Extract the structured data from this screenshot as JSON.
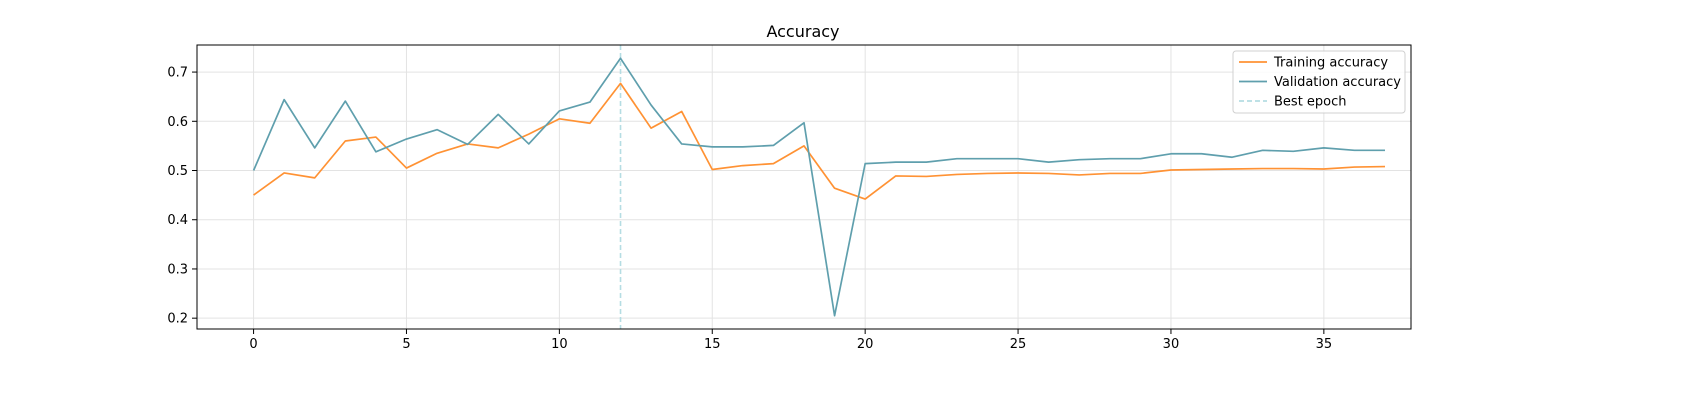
{
  "chart_data": {
    "type": "line",
    "title": "Accuracy",
    "xlabel": "",
    "ylabel": "",
    "xlim": [
      -1.85,
      37.85
    ],
    "ylim": [
      0.178,
      0.755
    ],
    "xticks": [
      0,
      5,
      10,
      15,
      20,
      25,
      30,
      35
    ],
    "yticks": [
      0.2,
      0.3,
      0.4,
      0.5,
      0.6,
      0.7
    ],
    "grid": true,
    "legend_position": "top-right",
    "x": [
      0,
      1,
      2,
      3,
      4,
      5,
      6,
      7,
      8,
      9,
      10,
      11,
      12,
      13,
      14,
      15,
      16,
      17,
      18,
      19,
      20,
      21,
      22,
      23,
      24,
      25,
      26,
      27,
      28,
      29,
      30,
      31,
      32,
      33,
      34,
      35,
      36,
      37
    ],
    "series": [
      {
        "name": "Training accuracy",
        "color": "#ff9234",
        "style": "solid",
        "values": [
          0.45,
          0.495,
          0.485,
          0.56,
          0.568,
          0.505,
          0.535,
          0.554,
          0.546,
          0.574,
          0.605,
          0.596,
          0.677,
          0.586,
          0.62,
          0.502,
          0.51,
          0.514,
          0.55,
          0.464,
          0.442,
          0.489,
          0.488,
          0.492,
          0.494,
          0.495,
          0.494,
          0.491,
          0.494,
          0.494,
          0.501,
          0.502,
          0.503,
          0.504,
          0.504,
          0.503,
          0.507,
          0.508
        ]
      },
      {
        "name": "Validation accuracy",
        "color": "#5f9fad",
        "style": "solid",
        "values": [
          0.5,
          0.644,
          0.546,
          0.641,
          0.538,
          0.564,
          0.583,
          0.553,
          0.614,
          0.554,
          0.621,
          0.639,
          0.728,
          0.633,
          0.554,
          0.548,
          0.548,
          0.551,
          0.597,
          0.205,
          0.514,
          0.517,
          0.517,
          0.524,
          0.524,
          0.524,
          0.517,
          0.522,
          0.524,
          0.524,
          0.534,
          0.534,
          0.527,
          0.541,
          0.539,
          0.546,
          0.541,
          0.541
        ]
      }
    ],
    "vline": {
      "name": "Best epoch",
      "x": 12,
      "color": "#b5dde3",
      "style": "dashed"
    }
  }
}
